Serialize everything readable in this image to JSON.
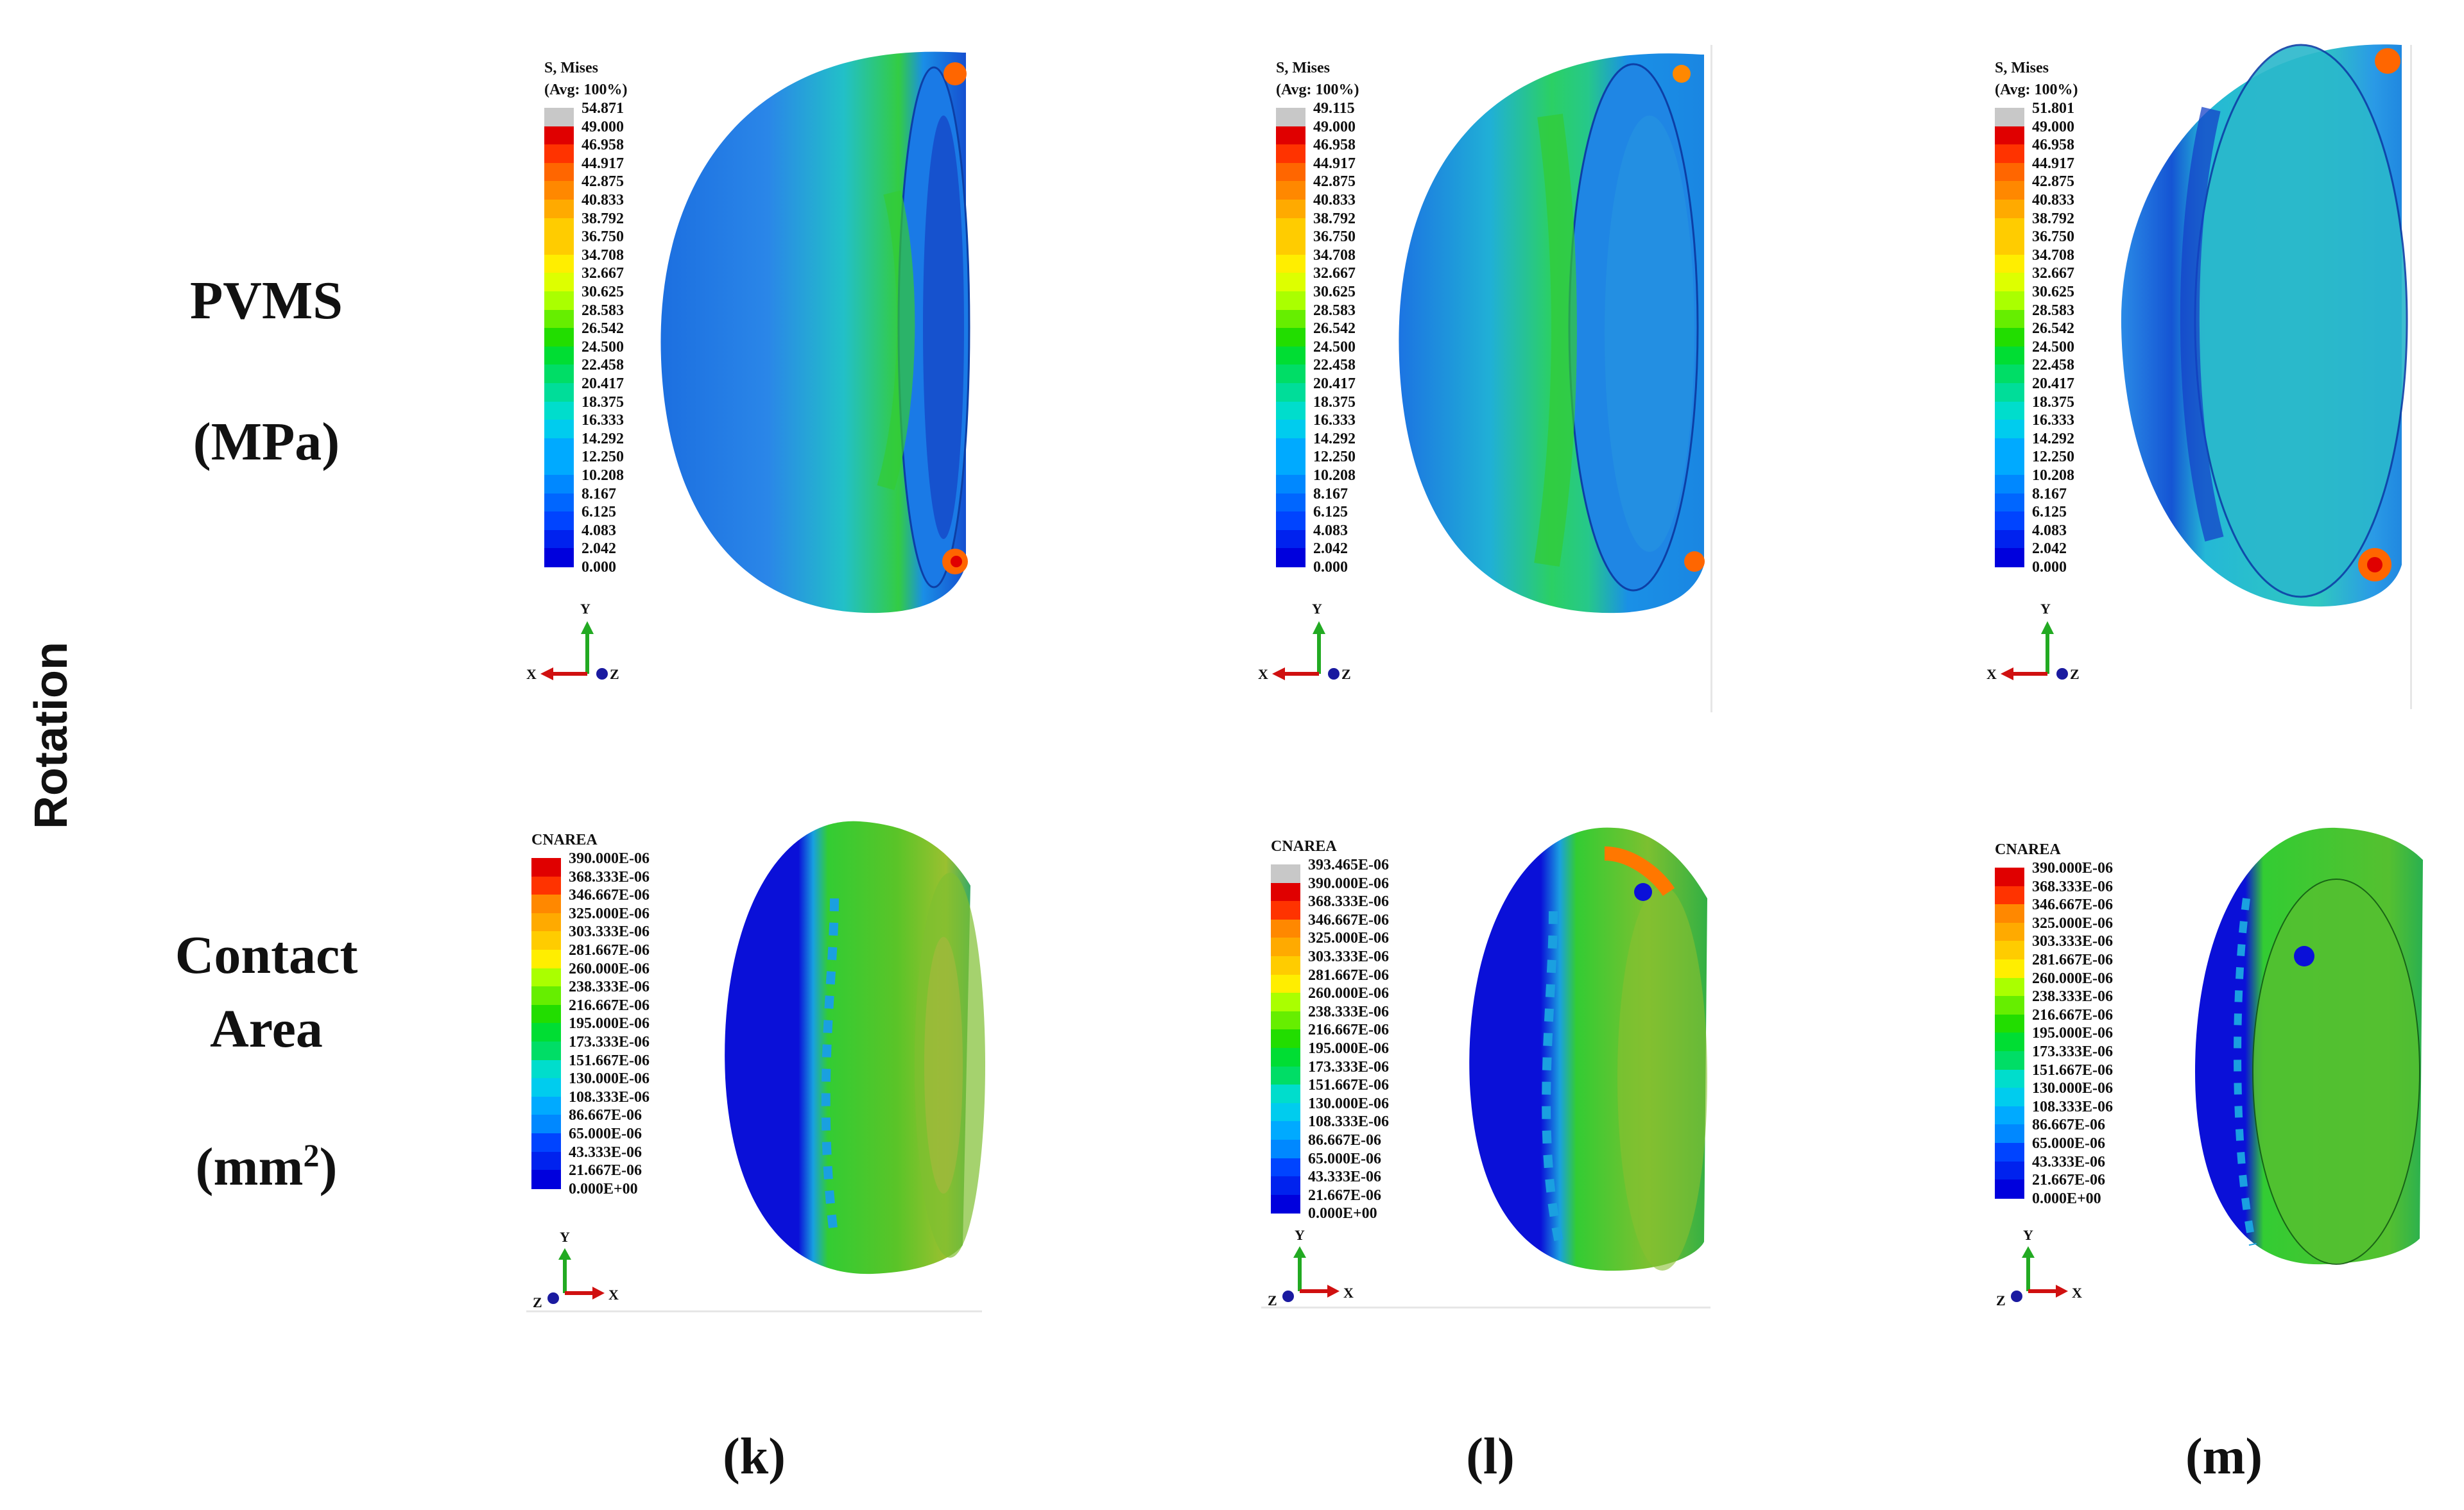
{
  "row_labels": {
    "pvms_line1": "PVMS",
    "pvms_line2": "(MPa)",
    "contact_line1": "Contact",
    "contact_line2": "Area",
    "contact_line3": "(mm",
    "contact_sup": "2",
    "contact_close": ")",
    "rotation": "Rotation"
  },
  "panel_labels": [
    "(k)",
    "(l)",
    "(m)"
  ],
  "mises_title_1": "S, Mises",
  "mises_title_2": "(Avg: 100%)",
  "cnarea_title": "CNAREA",
  "mises_colors": [
    "#c8c8c8",
    "#e00000",
    "#ff3300",
    "#ff6600",
    "#ff8800",
    "#ffaa00",
    "#ffcc00",
    "#ffee00",
    "#ddff00",
    "#aaff00",
    "#66ee00",
    "#22dd00",
    "#00dd33",
    "#00dd66",
    "#00dd99",
    "#00ddcc",
    "#00ccee",
    "#00aaff",
    "#0088ff",
    "#0066ff",
    "#0044ff",
    "#0022ee",
    "#0000dd"
  ],
  "mises_values": {
    "k": [
      "54.871",
      "49.000",
      "46.958",
      "44.917",
      "42.875",
      "40.833",
      "38.792",
      "36.750",
      "34.708",
      "32.667",
      "30.625",
      "28.583",
      "26.542",
      "24.500",
      "22.458",
      "20.417",
      "18.375",
      "16.333",
      "14.292",
      "12.250",
      "10.208",
      "8.167",
      "6.125",
      "4.083",
      "2.042",
      "0.000"
    ],
    "l": [
      "49.115",
      "49.000",
      "46.958",
      "44.917",
      "42.875",
      "40.833",
      "38.792",
      "36.750",
      "34.708",
      "32.667",
      "30.625",
      "28.583",
      "26.542",
      "24.500",
      "22.458",
      "20.417",
      "18.375",
      "16.333",
      "14.292",
      "12.250",
      "10.208",
      "8.167",
      "6.125",
      "4.083",
      "2.042",
      "0.000"
    ],
    "m": [
      "51.801",
      "49.000",
      "46.958",
      "44.917",
      "42.875",
      "40.833",
      "38.792",
      "36.750",
      "34.708",
      "32.667",
      "30.625",
      "28.583",
      "26.542",
      "24.500",
      "22.458",
      "20.417",
      "18.375",
      "16.333",
      "14.292",
      "12.250",
      "10.208",
      "8.167",
      "6.125",
      "4.083",
      "2.042",
      "0.000"
    ]
  },
  "cn_values": {
    "k": [
      "390.000E-06",
      "368.333E-06",
      "346.667E-06",
      "325.000E-06",
      "303.333E-06",
      "281.667E-06",
      "260.000E-06",
      "238.333E-06",
      "216.667E-06",
      "195.000E-06",
      "173.333E-06",
      "151.667E-06",
      "130.000E-06",
      "108.333E-06",
      "86.667E-06",
      "65.000E-06",
      "43.333E-06",
      "21.667E-06",
      "0.000E+00"
    ],
    "l": [
      "393.465E-06",
      "390.000E-06",
      "368.333E-06",
      "346.667E-06",
      "325.000E-06",
      "303.333E-06",
      "281.667E-06",
      "260.000E-06",
      "238.333E-06",
      "216.667E-06",
      "195.000E-06",
      "173.333E-06",
      "151.667E-06",
      "130.000E-06",
      "108.333E-06",
      "86.667E-06",
      "65.000E-06",
      "43.333E-06",
      "21.667E-06",
      "0.000E+00"
    ],
    "m": [
      "390.000E-06",
      "368.333E-06",
      "346.667E-06",
      "325.000E-06",
      "303.333E-06",
      "281.667E-06",
      "260.000E-06",
      "238.333E-06",
      "216.667E-06",
      "195.000E-06",
      "173.333E-06",
      "151.667E-06",
      "130.000E-06",
      "108.333E-06",
      "86.667E-06",
      "65.000E-06",
      "43.333E-06",
      "21.667E-06",
      "0.000E+00"
    ]
  },
  "axes": {
    "x": "X",
    "y": "Y",
    "z": "Z"
  }
}
